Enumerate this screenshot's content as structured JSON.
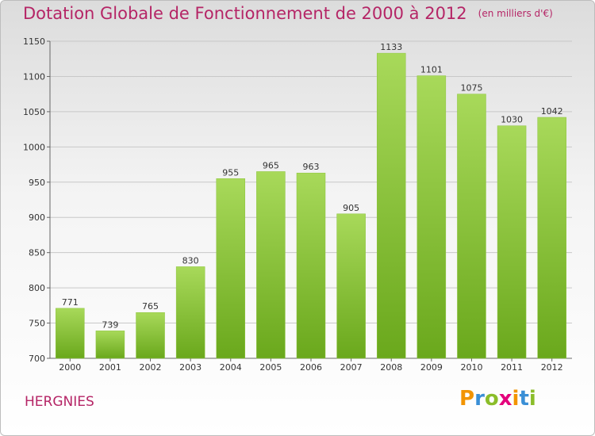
{
  "header": {
    "title": "Dotation Globale de Fonctionnement de 2000 à 2012",
    "subtitle": "(en milliers d'€)"
  },
  "footer": {
    "commune": "HERGNIES",
    "logo_letters": [
      "P",
      "r",
      "o",
      "x",
      "i",
      "t",
      "i"
    ],
    "logo_colors": [
      "#f29400",
      "#3a8fd6",
      "#8bbd2a",
      "#e4007c",
      "#f29400",
      "#3a8fd6",
      "#8bbd2a"
    ]
  },
  "colors": {
    "bar_light": "#a8d95a",
    "bar_dark": "#6aa81c",
    "title": "#b52566",
    "grid": "#c8c8c8"
  },
  "chart_data": {
    "type": "bar",
    "title": "Dotation Globale de Fonctionnement de 2000 à 2012",
    "subtitle": "(en milliers d'€)",
    "categories": [
      "2000",
      "2001",
      "2002",
      "2003",
      "2004",
      "2005",
      "2006",
      "2007",
      "2008",
      "2009",
      "2010",
      "2011",
      "2012"
    ],
    "values": [
      771,
      739,
      765,
      830,
      955,
      965,
      963,
      905,
      1133,
      1101,
      1075,
      1030,
      1042
    ],
    "ylim": [
      700,
      1150
    ],
    "yticks": [
      700,
      750,
      800,
      850,
      900,
      950,
      1000,
      1050,
      1100,
      1150
    ],
    "grid": true,
    "xlabel": "",
    "ylabel": ""
  }
}
